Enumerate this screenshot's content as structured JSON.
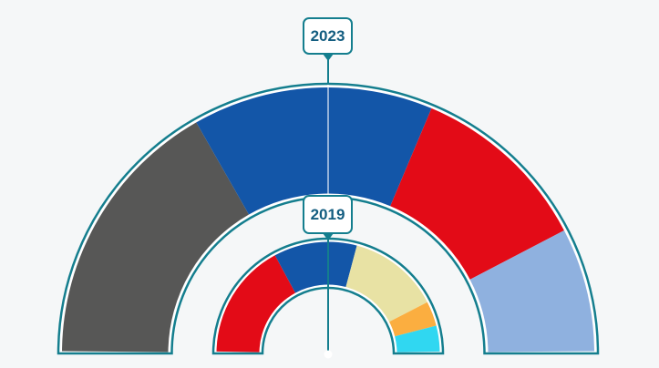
{
  "theme": {
    "background": "#f5f7f8",
    "outline_teal": "#147e8e",
    "label_text_color": "#135d80",
    "label_box_fill": "#ffffff",
    "connector_dark": "#147e8e",
    "connector_light": "rgba(255,255,255,0.55)",
    "center_dot_color": "#ffffff"
  },
  "chart_data": {
    "type": "pie",
    "subtype": "nested-half-donut",
    "description": "Two concentric semicircular donut rings comparing composition of 2023 (outer ring) and 2019 (inner ring); no numeric or legend labels are shown, only year marker boxes with connector lines to the chart center.",
    "legend": "none",
    "value_labels": "none",
    "rings": [
      {
        "name": "2023",
        "position": "outer",
        "segments": [
          {
            "id": "dark-gray",
            "color": "#575756",
            "share_pct": 33.5
          },
          {
            "id": "blue",
            "color": "#1356a8",
            "share_pct": 29.2
          },
          {
            "id": "red",
            "color": "#e30b17",
            "share_pct": 22.0
          },
          {
            "id": "light-blue",
            "color": "#8fb1df",
            "share_pct": 15.3
          }
        ]
      },
      {
        "name": "2019",
        "position": "inner",
        "segments": [
          {
            "id": "red",
            "color": "#e30b17",
            "share_pct": 34.2
          },
          {
            "id": "blue",
            "color": "#1356a8",
            "share_pct": 24.1
          },
          {
            "id": "beige",
            "color": "#e8e2a4",
            "share_pct": 26.5
          },
          {
            "id": "orange",
            "color": "#fbae40",
            "share_pct": 7.2
          },
          {
            "id": "cyan",
            "color": "#30d7f1",
            "share_pct": 8.0
          }
        ]
      }
    ]
  }
}
